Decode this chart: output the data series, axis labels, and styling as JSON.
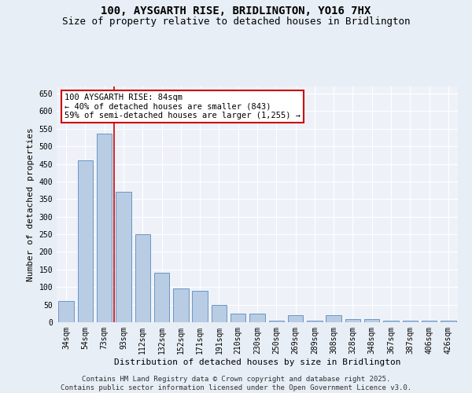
{
  "title": "100, AYSGARTH RISE, BRIDLINGTON, YO16 7HX",
  "subtitle": "Size of property relative to detached houses in Bridlington",
  "xlabel": "Distribution of detached houses by size in Bridlington",
  "ylabel": "Number of detached properties",
  "categories": [
    "34sqm",
    "54sqm",
    "73sqm",
    "93sqm",
    "112sqm",
    "132sqm",
    "152sqm",
    "171sqm",
    "191sqm",
    "210sqm",
    "230sqm",
    "250sqm",
    "269sqm",
    "289sqm",
    "308sqm",
    "328sqm",
    "348sqm",
    "367sqm",
    "387sqm",
    "406sqm",
    "426sqm"
  ],
  "values": [
    60,
    460,
    535,
    370,
    250,
    140,
    95,
    90,
    50,
    25,
    25,
    5,
    20,
    5,
    20,
    10,
    10,
    5,
    5,
    5,
    5
  ],
  "bar_color": "#b8cce4",
  "bar_edge_color": "#5a8bbf",
  "vline_x": 2.5,
  "vline_color": "#cc0000",
  "annotation_text": "100 AYSGARTH RISE: 84sqm\n← 40% of detached houses are smaller (843)\n59% of semi-detached houses are larger (1,255) →",
  "annotation_box_color": "#ffffff",
  "annotation_box_edge": "#cc0000",
  "ylim": [
    0,
    670
  ],
  "yticks": [
    0,
    50,
    100,
    150,
    200,
    250,
    300,
    350,
    400,
    450,
    500,
    550,
    600,
    650
  ],
  "bg_color": "#e8eef5",
  "plot_bg_color": "#eef2f8",
  "footer": "Contains HM Land Registry data © Crown copyright and database right 2025.\nContains public sector information licensed under the Open Government Licence v3.0.",
  "title_fontsize": 10,
  "subtitle_fontsize": 9,
  "axis_label_fontsize": 8,
  "tick_fontsize": 7,
  "footer_fontsize": 6.5,
  "annotation_fontsize": 7.5
}
